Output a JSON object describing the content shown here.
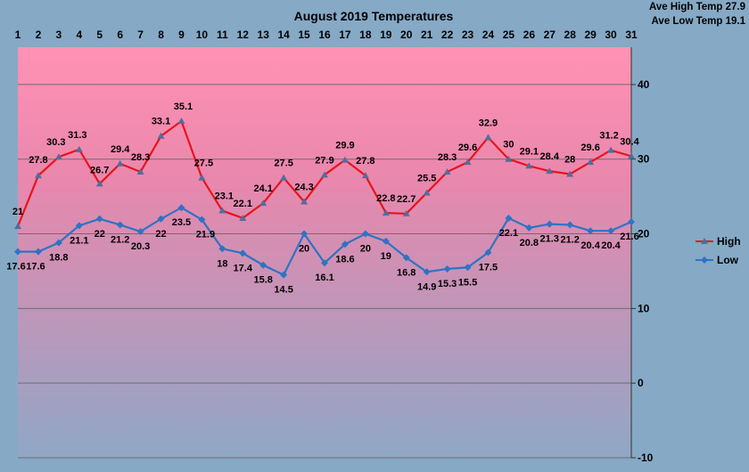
{
  "chart_data": {
    "type": "line",
    "title": "August 2019 Temperatures",
    "annotations": [
      "Ave High Temp 27.9",
      "Ave Low Temp 19.1"
    ],
    "categories": [
      "1",
      "2",
      "3",
      "4",
      "5",
      "6",
      "7",
      "8",
      "9",
      "10",
      "11",
      "12",
      "13",
      "14",
      "15",
      "16",
      "17",
      "18",
      "19",
      "20",
      "21",
      "22",
      "23",
      "24",
      "25",
      "26",
      "27",
      "28",
      "29",
      "30",
      "31"
    ],
    "x_axis_position": "top",
    "y_axis_position": "right",
    "ylim": [
      -10,
      45
    ],
    "yticks": [
      -10,
      0,
      10,
      20,
      30,
      40
    ],
    "grid": true,
    "legend_position": "right",
    "series": [
      {
        "name": "High",
        "color": "#e8141c",
        "marker_color": "#4f6f9e",
        "values": [
          21,
          27.8,
          30.3,
          31.3,
          26.7,
          29.4,
          28.3,
          33.1,
          35.1,
          27.5,
          23.1,
          22.1,
          24.1,
          27.5,
          24.3,
          27.9,
          29.9,
          27.8,
          22.8,
          22.7,
          25.5,
          28.3,
          29.6,
          32.9,
          30,
          29.1,
          28.4,
          28,
          29.6,
          31.2,
          30.4
        ]
      },
      {
        "name": "Low",
        "color": "#2e73c4",
        "marker_color": "#2e73c4",
        "values": [
          17.6,
          17.6,
          18.8,
          21.1,
          22,
          21.2,
          20.3,
          22,
          23.5,
          21.9,
          18,
          17.4,
          15.8,
          14.5,
          20,
          16.1,
          18.6,
          20,
          19,
          16.8,
          14.9,
          15.3,
          15.5,
          17.5,
          22.1,
          20.8,
          21.3,
          21.2,
          20.4,
          20.4,
          21.6
        ]
      }
    ]
  }
}
